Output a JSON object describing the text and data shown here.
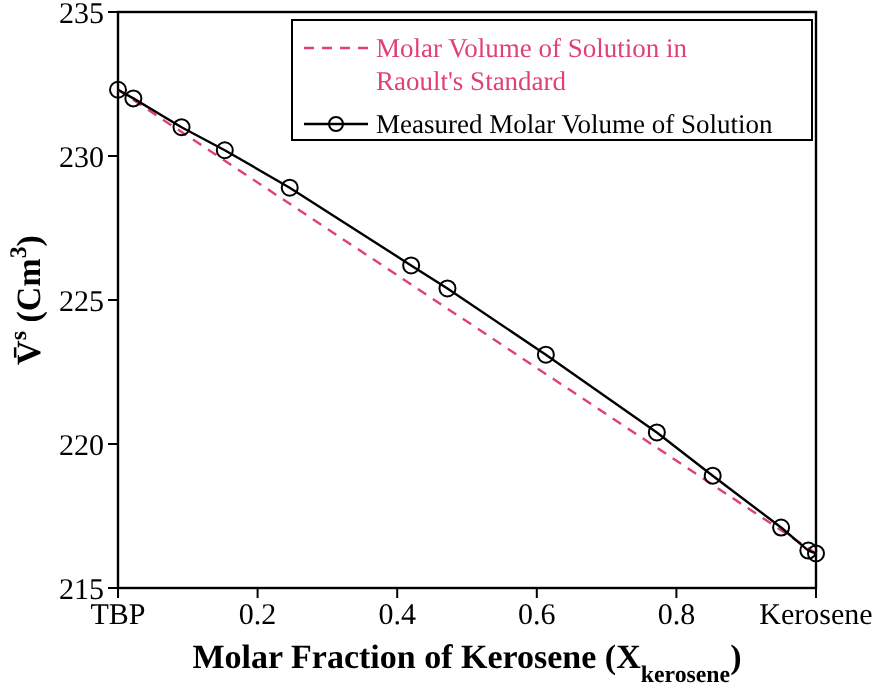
{
  "chart_data": {
    "type": "line",
    "xlabel": "Molar Fraction of Kerosene (X$_{kerosene}$)",
    "ylabel": "V̄$^{s}$ (Cm$^{3}$)",
    "xlim": [
      0,
      1
    ],
    "ylim": [
      215,
      235
    ],
    "xticks": [
      {
        "value": 0,
        "label": "TBP"
      },
      0.2,
      0.4,
      0.6,
      0.8,
      {
        "value": 1,
        "label": "Kerosene"
      }
    ],
    "yticks": [
      215,
      220,
      225,
      230,
      235
    ],
    "legend": "top right",
    "grid": false,
    "series": [
      {
        "name": "Molar Volume of Solution in Raoult's Standard",
        "color": "#e0407a",
        "line_style": "dashed",
        "marker": "none",
        "x": [
          0,
          1
        ],
        "values": [
          232.3,
          216.2
        ]
      },
      {
        "name": "Measured Molar Volume of Solution",
        "color": "#000000",
        "line_style": "solid",
        "marker": "circle",
        "x": [
          0,
          0.022,
          0.091,
          0.153,
          0.246,
          0.42,
          0.472,
          0.613,
          0.772,
          0.852,
          0.95,
          0.989,
          1
        ],
        "values": [
          232.3,
          232.0,
          231.0,
          230.2,
          228.9,
          226.2,
          225.4,
          223.1,
          220.4,
          218.9,
          217.1,
          216.3,
          216.2
        ]
      }
    ]
  }
}
